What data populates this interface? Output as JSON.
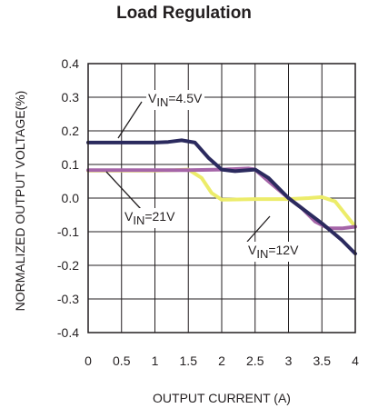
{
  "chart_data": {
    "type": "line",
    "title": "Load Regulation",
    "xlabel": "OUTPUT CURRENT (A)",
    "ylabel": "NORMALIZED OUTPUT VOLTAGE(%)",
    "xlim": [
      0,
      4
    ],
    "ylim": [
      -0.4,
      0.4
    ],
    "x_ticks": [
      "0",
      "0.5",
      "1",
      "1.5",
      "2",
      "2.5",
      "3",
      "3.5",
      "4"
    ],
    "y_ticks": [
      "0.4",
      "0.3",
      "0.2",
      "0.1",
      "0.0",
      "-0.1",
      "-0.2",
      "-0.3",
      "-0.4"
    ],
    "grid": true,
    "series": [
      {
        "name": "VIN=4.5V",
        "color": "#2b2a5e",
        "x": [
          0,
          0.5,
          1,
          1.2,
          1.4,
          1.6,
          1.8,
          2.0,
          2.2,
          2.5,
          2.7,
          3.0,
          3.2,
          3.5,
          3.8,
          4.0
        ],
        "y": [
          0.165,
          0.165,
          0.165,
          0.167,
          0.172,
          0.165,
          0.12,
          0.085,
          0.08,
          0.085,
          0.06,
          0.0,
          -0.03,
          -0.075,
          -0.125,
          -0.165
        ]
      },
      {
        "name": "VIN=21V",
        "color": "#ecec6a",
        "x": [
          0,
          0.5,
          1,
          1.3,
          1.5,
          1.7,
          1.85,
          2.0,
          2.5,
          3.0,
          3.3,
          3.5,
          3.7,
          4.0
        ],
        "y": [
          0.082,
          0.082,
          0.082,
          0.083,
          0.085,
          0.06,
          0.015,
          -0.005,
          -0.003,
          -0.003,
          0.0,
          0.003,
          -0.01,
          -0.085
        ]
      },
      {
        "name": "VIN=12V",
        "color": "#a565a8",
        "x": [
          0,
          0.5,
          1,
          1.5,
          2.0,
          2.4,
          2.5,
          2.7,
          3.0,
          3.2,
          3.4,
          3.6,
          3.8,
          4.0
        ],
        "y": [
          0.083,
          0.083,
          0.083,
          0.083,
          0.085,
          0.088,
          0.085,
          0.05,
          0.0,
          -0.03,
          -0.07,
          -0.09,
          -0.09,
          -0.085
        ]
      }
    ],
    "annotations": [
      {
        "base": "V",
        "sub": "IN",
        "rest": "=4.5V"
      },
      {
        "base": "V",
        "sub": "IN",
        "rest": "=21V"
      },
      {
        "base": "V",
        "sub": "IN",
        "rest": "=12V"
      }
    ]
  }
}
